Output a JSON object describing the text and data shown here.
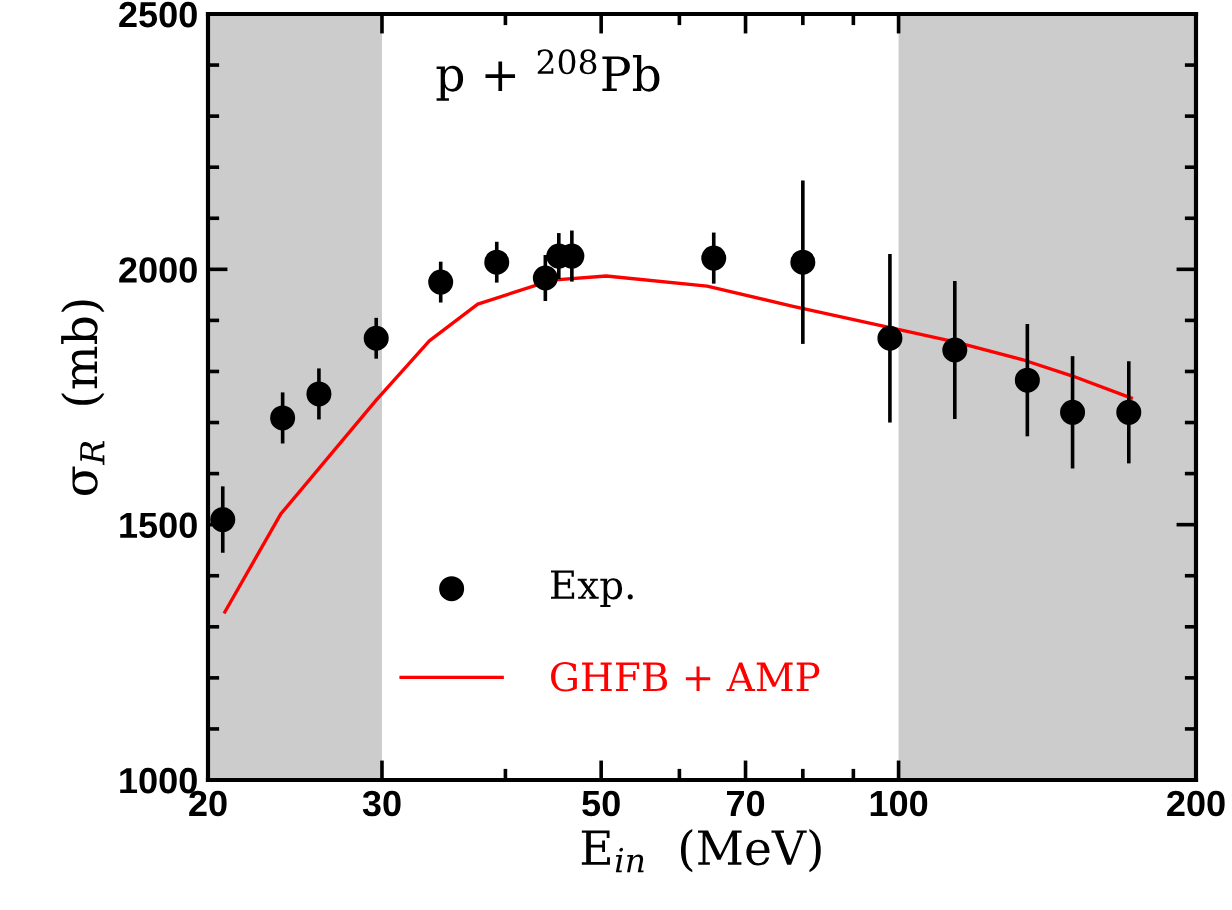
{
  "chart_data": {
    "type": "scatter",
    "xlabel": "E$_{in}$  (MeV)",
    "ylabel": "σ$_{R}$  (mb)",
    "log": "x",
    "xlim": [
      20,
      200
    ],
    "ylim": [
      1000,
      2500
    ],
    "xticks": [
      20,
      30,
      50,
      70,
      100,
      200
    ],
    "yticks": [
      1000,
      1500,
      2000,
      2500
    ],
    "legend": "bottom left",
    "grid": false,
    "annotations": [
      "p + $^{208}$Pb"
    ],
    "bands": [
      {
        "axis": "x",
        "from": 20,
        "to": 30,
        "color": "#cccccc"
      },
      {
        "axis": "x",
        "from": 100,
        "to": 200,
        "color": "#cccccc"
      }
    ],
    "series": [
      {
        "name": "Exp.",
        "marker": "circle",
        "color": "#000000",
        "x": [
          20.7,
          23.8,
          25.9,
          29.6,
          34.4,
          39.2,
          43.9,
          45.3,
          46.7,
          65,
          80,
          98,
          114,
          135,
          150,
          171
        ],
        "values": [
          1510,
          1709,
          1756,
          1865,
          1975,
          2014,
          1983,
          2026,
          2026,
          2022,
          2014,
          1865,
          1842,
          1783,
          1720,
          1720
        ],
        "errors": [
          65,
          50,
          50,
          40,
          40,
          40,
          45,
          45,
          50,
          50,
          160,
          165,
          135,
          110,
          110,
          100
        ]
      },
      {
        "name": "GHFB + AMP",
        "type": "line",
        "marker": "none",
        "line_style": "solid",
        "color": "#ff0000",
        "x": [
          20.8,
          23.7,
          29.6,
          33.5,
          37.5,
          44.6,
          50.6,
          64,
          78,
          96.5,
          114,
          134,
          150,
          172
        ],
        "values": [
          1329,
          1521,
          1744,
          1860,
          1932,
          1979,
          1987,
          1967,
          1928,
          1889,
          1858,
          1822,
          1791,
          1748
        ]
      }
    ]
  }
}
